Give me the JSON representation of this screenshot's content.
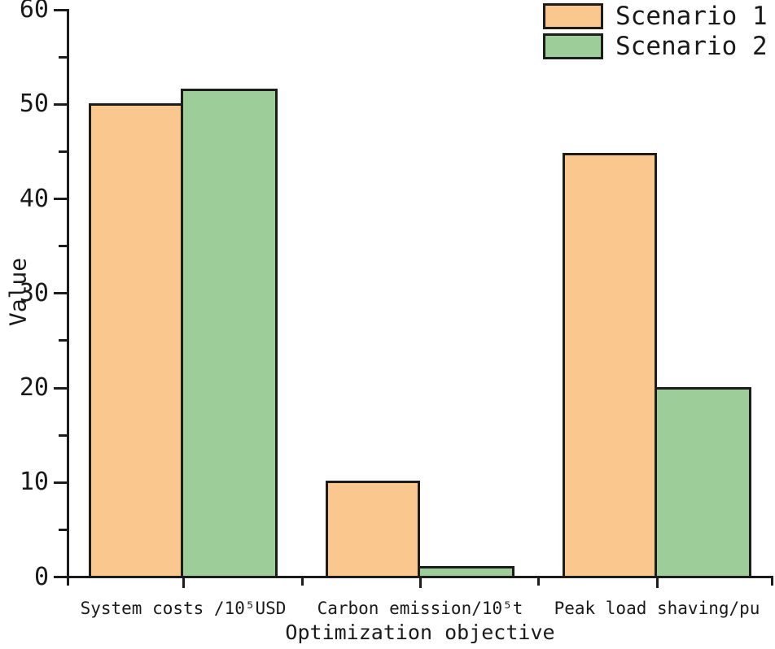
{
  "chart_data": {
    "type": "bar",
    "title": "",
    "xlabel": "Optimization objective",
    "ylabel": "Value",
    "categories": [
      "System costs /10⁵USD",
      "Carbon emission/10⁵t",
      "Peak load shaving/pu"
    ],
    "series": [
      {
        "name": "Scenario 1",
        "color": "#FAC88F",
        "values": [
          50.0,
          10.1,
          44.7
        ]
      },
      {
        "name": "Scenario 2",
        "color": "#9DCD99",
        "values": [
          51.5,
          1.0,
          20.0
        ]
      }
    ],
    "ylim": [
      0,
      60
    ],
    "yticks": [
      0,
      10,
      20,
      30,
      40,
      50,
      60
    ],
    "ytick_minor": [
      5,
      15,
      25,
      35,
      45,
      55
    ],
    "bar_edge_color": "#1c1c1c",
    "axis_color": "#1c1c1c",
    "text_color": "#1a1a1a",
    "legend_position": "top-right",
    "grid": false
  }
}
